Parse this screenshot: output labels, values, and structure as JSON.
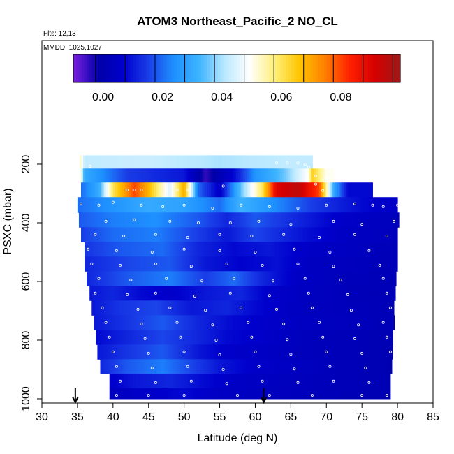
{
  "chart_data": {
    "type": "heatmap",
    "title": "ATOM3 Northeast_Pacific_2 NO_CL",
    "annotations": [
      "Flts: 12,13",
      "MMDD: 1025,1027"
    ],
    "xlabel": "Latitude (deg N)",
    "ylabel": "PSXC (mbar)",
    "xlim": [
      30,
      85
    ],
    "ylim": [
      1000,
      0
    ],
    "x_ticks": [
      "30",
      "35",
      "40",
      "45",
      "50",
      "55",
      "60",
      "65",
      "70",
      "75",
      "80",
      "85"
    ],
    "y_ticks": [
      "200",
      "400",
      "600",
      "800",
      "1000"
    ],
    "colorbar": {
      "range": [
        -0.01,
        0.1
      ],
      "tick_labels": [
        "0.00",
        "0.02",
        "0.04",
        "0.06",
        "0.08"
      ],
      "colors": [
        "#7b1fe0",
        "#0000a8",
        "#0000cd",
        "#1a3fe8",
        "#1e90ff",
        "#3db3ff",
        "#b8e8ff",
        "#ffffff",
        "#fff07a",
        "#ffc400",
        "#ff8000",
        "#ff2000",
        "#d40000",
        "#a01818"
      ]
    },
    "arrows_latitude": [
      34.7,
      61.2
    ],
    "layers": [
      {
        "p": 190,
        "lat0": 35.3,
        "lat1": 68.0,
        "segments": [
          [
            35.3,
            0.055
          ],
          [
            36.0,
            0.042
          ],
          [
            45.0,
            0.043
          ],
          [
            55.0,
            0.04
          ],
          [
            65.0,
            0.042
          ],
          [
            68.0,
            0.042
          ]
        ]
      },
      {
        "p": 240,
        "lat0": 35.3,
        "lat1": 71.0,
        "segments": [
          [
            35.3,
            0.055
          ],
          [
            36.0,
            0.03
          ],
          [
            42.0,
            0.015
          ],
          [
            50.0,
            0.01
          ],
          [
            53.0,
            -0.005
          ],
          [
            57.0,
            0.008
          ],
          [
            60.0,
            0.025
          ],
          [
            64.0,
            0.035
          ],
          [
            67.5,
            0.05
          ],
          [
            68.0,
            0.065
          ],
          [
            70.0,
            0.05
          ]
        ]
      },
      {
        "p": 285,
        "lat0": 35.5,
        "lat1": 76.5,
        "segments": [
          [
            35.5,
            0.02
          ],
          [
            38.0,
            0.03
          ],
          [
            40.0,
            0.06
          ],
          [
            43.0,
            0.08
          ],
          [
            45.0,
            0.068
          ],
          [
            46.0,
            0.06
          ],
          [
            48.0,
            0.045
          ],
          [
            50.0,
            0.07
          ],
          [
            52.0,
            0.02
          ],
          [
            55.0,
            0.005
          ],
          [
            58.0,
            0.035
          ],
          [
            61.0,
            0.06
          ],
          [
            63.0,
            0.09
          ],
          [
            66.0,
            0.095
          ],
          [
            69.0,
            0.08
          ],
          [
            71.0,
            0.03
          ],
          [
            73.0,
            0.008
          ],
          [
            76.0,
            0.008
          ]
        ]
      },
      {
        "p": 340,
        "lat0": 35.0,
        "lat1": 80.0,
        "segments": [
          [
            35.0,
            0.02
          ],
          [
            40.0,
            0.025
          ],
          [
            45.0,
            0.03
          ],
          [
            50.0,
            0.028
          ],
          [
            55.0,
            0.02
          ],
          [
            58.0,
            0.032
          ],
          [
            62.0,
            0.025
          ],
          [
            68.0,
            0.015
          ],
          [
            75.0,
            0.008
          ],
          [
            80.0,
            0.005
          ]
        ]
      },
      {
        "p": 390,
        "lat0": 35.2,
        "lat1": 80.0,
        "segments": [
          [
            35.2,
            0.018
          ],
          [
            40.0,
            0.022
          ],
          [
            46.0,
            0.024
          ],
          [
            52.0,
            0.018
          ],
          [
            56.0,
            0.012
          ],
          [
            60.0,
            0.018
          ],
          [
            66.0,
            0.012
          ],
          [
            72.0,
            0.006
          ],
          [
            80.0,
            0.003
          ]
        ]
      },
      {
        "p": 440,
        "lat0": 35.5,
        "lat1": 80.0,
        "segments": [
          [
            35.5,
            0.015
          ],
          [
            40.0,
            0.02
          ],
          [
            46.0,
            0.022
          ],
          [
            52.0,
            0.015
          ],
          [
            56.0,
            0.01
          ],
          [
            60.0,
            0.016
          ],
          [
            66.0,
            0.01
          ],
          [
            72.0,
            0.005
          ],
          [
            80.0,
            0.003
          ]
        ]
      },
      {
        "p": 490,
        "lat0": 36.0,
        "lat1": 80.0,
        "segments": [
          [
            36.0,
            0.014
          ],
          [
            41.0,
            0.018
          ],
          [
            47.0,
            0.02
          ],
          [
            52.0,
            0.012
          ],
          [
            57.0,
            0.008
          ],
          [
            62.0,
            0.01
          ],
          [
            68.0,
            0.005
          ],
          [
            74.0,
            0.004
          ],
          [
            80.0,
            0.002
          ]
        ]
      },
      {
        "p": 540,
        "lat0": 36.0,
        "lat1": 79.8,
        "segments": [
          [
            36.0,
            0.012
          ],
          [
            42.0,
            0.016
          ],
          [
            48.0,
            0.018
          ],
          [
            53.0,
            0.01
          ],
          [
            58.0,
            0.007
          ],
          [
            63.0,
            0.009
          ],
          [
            68.0,
            0.004
          ],
          [
            75.0,
            0.003
          ],
          [
            79.8,
            0.002
          ]
        ]
      },
      {
        "p": 590,
        "lat0": 36.3,
        "lat1": 79.7,
        "segments": [
          [
            36.3,
            0.012
          ],
          [
            42.0,
            0.018
          ],
          [
            48.0,
            0.022
          ],
          [
            53.0,
            0.015
          ],
          [
            57.0,
            0.02
          ],
          [
            61.0,
            0.012
          ],
          [
            66.0,
            0.005
          ],
          [
            72.0,
            0.003
          ],
          [
            79.7,
            0.002
          ]
        ]
      },
      {
        "p": 640,
        "lat0": 36.7,
        "lat1": 79.5,
        "segments": [
          [
            36.7,
            0.01
          ],
          [
            40.0,
            0.012
          ],
          [
            44.0,
            0.008
          ],
          [
            48.0,
            0.006
          ],
          [
            53.0,
            0.01
          ],
          [
            58.0,
            0.012
          ],
          [
            62.0,
            0.006
          ],
          [
            68.0,
            0.004
          ],
          [
            75.0,
            0.002
          ],
          [
            79.5,
            0.002
          ]
        ]
      },
      {
        "p": 690,
        "lat0": 37.0,
        "lat1": 79.5,
        "segments": [
          [
            37.0,
            0.01
          ],
          [
            41.0,
            0.014
          ],
          [
            46.0,
            0.016
          ],
          [
            51.0,
            0.01
          ],
          [
            56.0,
            0.012
          ],
          [
            60.0,
            0.008
          ],
          [
            66.0,
            0.004
          ],
          [
            72.0,
            0.003
          ],
          [
            79.5,
            0.002
          ]
        ]
      },
      {
        "p": 740,
        "lat0": 37.3,
        "lat1": 79.4,
        "segments": [
          [
            37.3,
            0.01
          ],
          [
            42.0,
            0.014
          ],
          [
            47.0,
            0.018
          ],
          [
            52.0,
            0.012
          ],
          [
            57.0,
            0.008
          ],
          [
            62.0,
            0.006
          ],
          [
            68.0,
            0.004
          ],
          [
            74.0,
            0.003
          ],
          [
            79.4,
            0.002
          ]
        ]
      },
      {
        "p": 790,
        "lat0": 37.6,
        "lat1": 79.3,
        "segments": [
          [
            37.6,
            0.008
          ],
          [
            42.0,
            0.012
          ],
          [
            47.0,
            0.016
          ],
          [
            52.0,
            0.012
          ],
          [
            56.0,
            0.008
          ],
          [
            61.0,
            0.006
          ],
          [
            67.0,
            0.003
          ],
          [
            74.0,
            0.002
          ],
          [
            79.3,
            0.001
          ]
        ]
      },
      {
        "p": 840,
        "lat0": 37.8,
        "lat1": 79.2,
        "segments": [
          [
            37.8,
            0.01
          ],
          [
            42.0,
            0.014
          ],
          [
            47.0,
            0.018
          ],
          [
            52.0,
            0.01
          ],
          [
            56.0,
            0.006
          ],
          [
            61.0,
            0.005
          ],
          [
            67.0,
            0.003
          ],
          [
            74.0,
            0.002
          ],
          [
            79.2,
            0.001
          ]
        ]
      },
      {
        "p": 890,
        "lat0": 38.2,
        "lat1": 79.0,
        "segments": [
          [
            38.2,
            0.012
          ],
          [
            42.0,
            0.018
          ],
          [
            47.0,
            0.022
          ],
          [
            51.0,
            0.016
          ],
          [
            55.0,
            0.01
          ],
          [
            60.0,
            0.006
          ],
          [
            66.0,
            0.004
          ],
          [
            73.0,
            0.002
          ],
          [
            79.0,
            0.001
          ]
        ]
      },
      {
        "p": 940,
        "lat0": 39.5,
        "lat1": 79.0,
        "segments": [
          [
            39.5,
            0.006
          ],
          [
            43.0,
            0.01
          ],
          [
            48.0,
            0.012
          ],
          [
            53.0,
            0.008
          ],
          [
            57.0,
            0.005
          ],
          [
            62.0,
            0.004
          ],
          [
            68.0,
            0.003
          ],
          [
            74.0,
            0.002
          ],
          [
            79.0,
            0.001
          ]
        ]
      },
      {
        "p": 988,
        "lat0": 39.5,
        "lat1": 79.0,
        "segments": [
          [
            39.5,
            0.004
          ],
          [
            45.0,
            0.006
          ],
          [
            50.0,
            0.008
          ],
          [
            55.0,
            0.005
          ],
          [
            60.0,
            0.004
          ],
          [
            66.0,
            0.003
          ],
          [
            72.0,
            0.002
          ],
          [
            79.0,
            0.001
          ]
        ]
      }
    ],
    "sample_points": [
      [
        36.8,
        207
      ],
      [
        63.0,
        196
      ],
      [
        64.5,
        196
      ],
      [
        66.0,
        196
      ],
      [
        67.0,
        200
      ],
      [
        67.5,
        210
      ],
      [
        68.5,
        240
      ],
      [
        70.0,
        246
      ],
      [
        71.5,
        248
      ],
      [
        42.0,
        288
      ],
      [
        43.0,
        288
      ],
      [
        44.0,
        288
      ],
      [
        47.5,
        288
      ],
      [
        49.0,
        288
      ],
      [
        50.5,
        288
      ],
      [
        55.5,
        275
      ],
      [
        68.5,
        268
      ],
      [
        69.5,
        290
      ],
      [
        35.5,
        335
      ],
      [
        38.0,
        340
      ],
      [
        40.0,
        330
      ],
      [
        44.0,
        340
      ],
      [
        47.0,
        345
      ],
      [
        50.0,
        340
      ],
      [
        54.0,
        350
      ],
      [
        58.0,
        340
      ],
      [
        62.0,
        345
      ],
      [
        66.0,
        350
      ],
      [
        70.0,
        340
      ],
      [
        74.0,
        335
      ],
      [
        76.5,
        340
      ],
      [
        78.0,
        345
      ],
      [
        80.0,
        340
      ],
      [
        39.0,
        395
      ],
      [
        43.0,
        390
      ],
      [
        48.0,
        395
      ],
      [
        52.0,
        400
      ],
      [
        56.5,
        400
      ],
      [
        60.5,
        395
      ],
      [
        65.0,
        405
      ],
      [
        71.0,
        395
      ],
      [
        75.0,
        405
      ],
      [
        79.5,
        395
      ],
      [
        37.5,
        440
      ],
      [
        41.5,
        445
      ],
      [
        46.0,
        440
      ],
      [
        50.5,
        450
      ],
      [
        55.0,
        440
      ],
      [
        59.5,
        445
      ],
      [
        64.0,
        440
      ],
      [
        69.0,
        450
      ],
      [
        74.0,
        440
      ],
      [
        78.5,
        445
      ],
      [
        36.5,
        490
      ],
      [
        40.5,
        495
      ],
      [
        45.5,
        500
      ],
      [
        50.0,
        490
      ],
      [
        55.0,
        495
      ],
      [
        60.0,
        500
      ],
      [
        65.5,
        490
      ],
      [
        70.5,
        500
      ],
      [
        76.0,
        495
      ],
      [
        37.0,
        540
      ],
      [
        41.0,
        545
      ],
      [
        46.0,
        540
      ],
      [
        51.0,
        548
      ],
      [
        56.0,
        540
      ],
      [
        61.0,
        545
      ],
      [
        66.0,
        540
      ],
      [
        71.0,
        548
      ],
      [
        77.5,
        545
      ],
      [
        38.0,
        590
      ],
      [
        42.5,
        595
      ],
      [
        47.5,
        590
      ],
      [
        52.5,
        598
      ],
      [
        57.0,
        590
      ],
      [
        62.5,
        598
      ],
      [
        67.0,
        590
      ],
      [
        72.0,
        595
      ],
      [
        78.0,
        590
      ],
      [
        37.5,
        640
      ],
      [
        42.0,
        645
      ],
      [
        46.0,
        640
      ],
      [
        51.5,
        650
      ],
      [
        56.5,
        640
      ],
      [
        62.0,
        648
      ],
      [
        67.5,
        640
      ],
      [
        73.0,
        645
      ],
      [
        78.5,
        640
      ],
      [
        38.5,
        690
      ],
      [
        43.5,
        695
      ],
      [
        48.0,
        690
      ],
      [
        53.0,
        698
      ],
      [
        58.0,
        690
      ],
      [
        63.0,
        695
      ],
      [
        68.0,
        690
      ],
      [
        73.5,
        698
      ],
      [
        79.0,
        690
      ],
      [
        39.0,
        740
      ],
      [
        44.0,
        745
      ],
      [
        49.0,
        740
      ],
      [
        54.0,
        748
      ],
      [
        59.0,
        740
      ],
      [
        64.0,
        745
      ],
      [
        69.0,
        740
      ],
      [
        74.5,
        748
      ],
      [
        78.0,
        740
      ],
      [
        39.5,
        790
      ],
      [
        44.5,
        795
      ],
      [
        49.5,
        790
      ],
      [
        54.5,
        800
      ],
      [
        59.5,
        790
      ],
      [
        64.5,
        798
      ],
      [
        69.5,
        790
      ],
      [
        74.0,
        795
      ],
      [
        78.5,
        790
      ],
      [
        40.0,
        840
      ],
      [
        45.0,
        845
      ],
      [
        50.0,
        840
      ],
      [
        55.0,
        850
      ],
      [
        60.0,
        840
      ],
      [
        65.0,
        848
      ],
      [
        70.0,
        840
      ],
      [
        75.0,
        845
      ],
      [
        79.0,
        840
      ],
      [
        40.5,
        890
      ],
      [
        45.5,
        895
      ],
      [
        50.5,
        890
      ],
      [
        55.5,
        900
      ],
      [
        60.5,
        890
      ],
      [
        65.5,
        898
      ],
      [
        70.5,
        890
      ],
      [
        75.5,
        895
      ],
      [
        41.0,
        940
      ],
      [
        46.0,
        945
      ],
      [
        51.0,
        940
      ],
      [
        56.0,
        948
      ],
      [
        61.0,
        940
      ],
      [
        66.0,
        945
      ],
      [
        71.0,
        940
      ],
      [
        76.0,
        945
      ],
      [
        40.5,
        988
      ],
      [
        45.0,
        988
      ],
      [
        50.0,
        988
      ],
      [
        57.5,
        988
      ],
      [
        62.0,
        988
      ],
      [
        68.0,
        988
      ],
      [
        75.0,
        988
      ],
      [
        78.5,
        988
      ]
    ]
  }
}
